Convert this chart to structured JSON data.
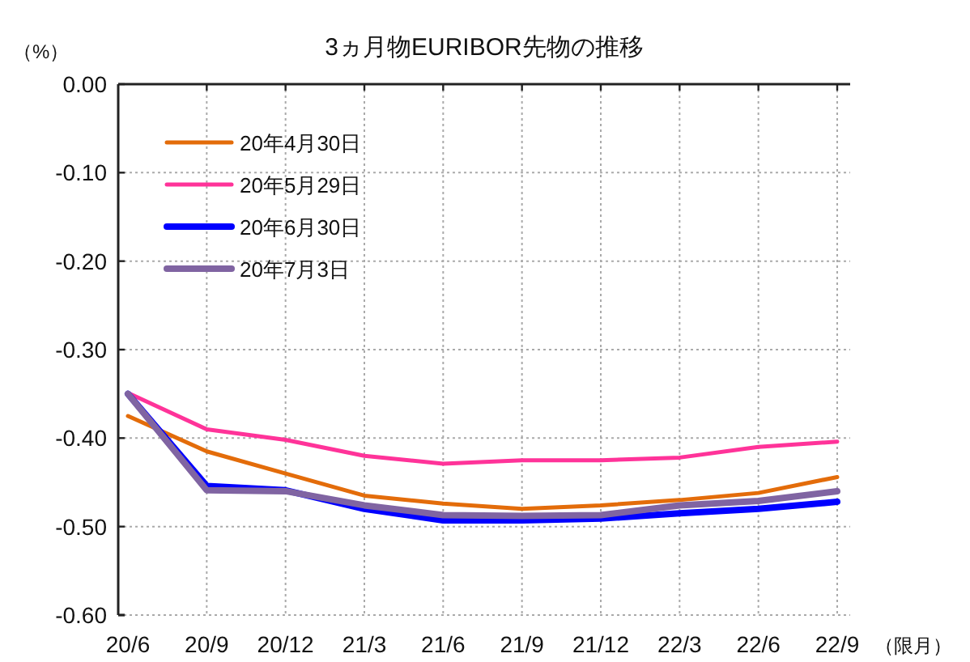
{
  "chart_data": {
    "type": "line",
    "title": "3ヵ月物EURIBOR先物の推移",
    "ylabel": "（%）",
    "xlabel": "（限月）",
    "categories": [
      "20/6",
      "20/9",
      "20/12",
      "21/3",
      "21/6",
      "21/9",
      "21/12",
      "22/3",
      "22/6",
      "22/9"
    ],
    "ylim": [
      -0.6,
      0
    ],
    "yticks": [
      {
        "value": -0.6,
        "label": "-0.60"
      },
      {
        "value": -0.5,
        "label": "-0.50"
      },
      {
        "value": -0.4,
        "label": "-0.40"
      },
      {
        "value": -0.3,
        "label": "-0.30"
      },
      {
        "value": -0.2,
        "label": "-0.20"
      },
      {
        "value": -0.1,
        "label": "-0.10"
      },
      {
        "value": 0,
        "label": "0.00"
      }
    ],
    "grid": true,
    "legend": "top left",
    "marker": "none",
    "line_style": "solid",
    "series": [
      {
        "name": "20年4月30日",
        "color": "#e36c0a",
        "values": [
          -0.375,
          -0.415,
          -0.44,
          -0.465,
          -0.474,
          -0.48,
          -0.476,
          -0.47,
          -0.462,
          -0.444
        ]
      },
      {
        "name": "20年5月29日",
        "color": "#ff3399",
        "values": [
          -0.349,
          -0.39,
          -0.402,
          -0.42,
          -0.429,
          -0.425,
          -0.425,
          -0.422,
          -0.41,
          -0.404
        ]
      },
      {
        "name": "20年6月30日",
        "color": "#0000ff",
        "values": [
          -0.35,
          -0.454,
          -0.459,
          -0.48,
          -0.493,
          -0.493,
          -0.491,
          -0.485,
          -0.48,
          -0.472
        ]
      },
      {
        "name": "20年7月3日",
        "color": "#8064a2",
        "values": [
          -0.35,
          -0.459,
          -0.46,
          -0.476,
          -0.487,
          -0.488,
          -0.487,
          -0.476,
          -0.471,
          -0.46
        ]
      }
    ]
  }
}
